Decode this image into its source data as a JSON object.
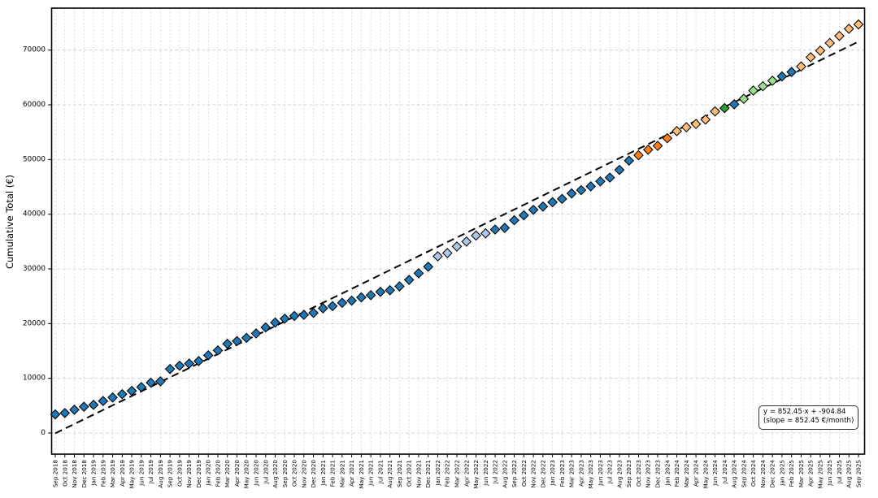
{
  "chart_data": {
    "type": "scatter",
    "title": "",
    "xlabel": "",
    "ylabel": "Cumulative Total (€)",
    "marker": "diamond",
    "grid": "dashed-both-axes",
    "legend": "none",
    "ylim": [
      -3860,
      77680
    ],
    "yticks": [
      0,
      10000,
      20000,
      30000,
      40000,
      50000,
      60000,
      70000
    ],
    "x": [
      "Sep 2018",
      "Oct 2018",
      "Nov 2018",
      "Dec 2018",
      "Jan 2019",
      "Feb 2019",
      "Mar 2019",
      "Apr 2019",
      "May 2019",
      "Jun 2019",
      "Jul 2019",
      "Aug 2019",
      "Sep 2019",
      "Oct 2019",
      "Nov 2019",
      "Dec 2019",
      "Jan 2020",
      "Feb 2020",
      "Mar 2020",
      "Apr 2020",
      "May 2020",
      "Jun 2020",
      "Jul 2020",
      "Aug 2020",
      "Sep 2020",
      "Oct 2020",
      "Nov 2020",
      "Dec 2020",
      "Jan 2021",
      "Feb 2021",
      "Mar 2021",
      "Apr 2021",
      "May 2021",
      "Jun 2021",
      "Jul 2021",
      "Aug 2021",
      "Sep 2021",
      "Oct 2021",
      "Nov 2021",
      "Dec 2021",
      "Jan 2022",
      "Feb 2022",
      "Mar 2022",
      "Apr 2022",
      "May 2022",
      "Jun 2022",
      "Jul 2022",
      "Aug 2022",
      "Sep 2022",
      "Oct 2022",
      "Nov 2022",
      "Dec 2022",
      "Jan 2023",
      "Feb 2023",
      "Mar 2023",
      "Apr 2023",
      "May 2023",
      "Jun 2023",
      "Jul 2023",
      "Aug 2023",
      "Sep 2023",
      "Oct 2023",
      "Nov 2023",
      "Dec 2023",
      "Jan 2024",
      "Feb 2024",
      "Mar 2024",
      "Apr 2024",
      "May 2024",
      "Jun 2024",
      "Jul 2024",
      "Aug 2024",
      "Sep 2024",
      "Oct 2024",
      "Nov 2024",
      "Dec 2024",
      "Jan 2025",
      "Feb 2025",
      "Mar 2025",
      "Apr 2025",
      "May 2025",
      "Jun 2025",
      "Jul 2025",
      "Aug 2025",
      "Sep 2025"
    ],
    "values": [
      3400,
      3650,
      4250,
      4800,
      5150,
      5850,
      6500,
      7100,
      7700,
      8400,
      9200,
      9450,
      11700,
      12300,
      12700,
      13150,
      14200,
      15100,
      16300,
      16800,
      17400,
      18200,
      19300,
      20200,
      20900,
      21400,
      21600,
      21950,
      22800,
      23200,
      23800,
      24200,
      24800,
      25200,
      25800,
      26100,
      26800,
      28000,
      29200,
      30400,
      32300,
      32900,
      34100,
      35000,
      36100,
      36500,
      37200,
      37500,
      38900,
      39800,
      40800,
      41400,
      42200,
      42800,
      43800,
      44400,
      45100,
      46000,
      46700,
      48100,
      49800,
      50800,
      51800,
      52500,
      53900,
      55200,
      55900,
      56500,
      57300,
      58800,
      59400,
      60100,
      61100,
      62600,
      63400,
      64400,
      65200,
      66000,
      67000,
      68700,
      69900,
      71300,
      72600,
      73900,
      74700
    ],
    "point_colors": [
      "blue",
      "blue",
      "blue",
      "blue",
      "blue",
      "blue",
      "blue",
      "blue",
      "blue",
      "blue",
      "blue",
      "blue",
      "blue",
      "blue",
      "blue",
      "blue",
      "blue",
      "blue",
      "blue",
      "blue",
      "blue",
      "blue",
      "blue",
      "blue",
      "blue",
      "blue",
      "blue",
      "blue",
      "blue",
      "blue",
      "blue",
      "blue",
      "blue",
      "blue",
      "blue",
      "blue",
      "blue",
      "blue",
      "blue",
      "blue",
      "light_blue",
      "light_blue",
      "light_blue",
      "light_blue",
      "light_blue",
      "light_blue",
      "blue",
      "blue",
      "blue",
      "blue",
      "blue",
      "blue",
      "blue",
      "blue",
      "blue",
      "blue",
      "blue",
      "blue",
      "blue",
      "blue",
      "blue",
      "orange",
      "orange",
      "orange",
      "orange",
      "light_orange",
      "light_orange",
      "light_orange",
      "light_orange",
      "light_orange",
      "green",
      "blue",
      "light_green",
      "light_green",
      "light_green",
      "light_green",
      "blue",
      "blue",
      "light_orange",
      "light_orange",
      "light_orange",
      "light_orange",
      "light_orange",
      "light_orange",
      "light_orange"
    ],
    "palette": {
      "blue": "#1f77b4",
      "light_blue": "#aec7e8",
      "orange": "#ff7f0e",
      "light_orange": "#ffbb78",
      "green": "#2ca02c",
      "light_green": "#98df8a",
      "marker_edge": "#000000",
      "grid": "#cccccc",
      "trend": "#000000"
    },
    "trendline": {
      "slope": 852.45,
      "intercept": -904.84,
      "x_index_start": 1,
      "style": "black-dashed"
    },
    "annotation": {
      "line1": "y = 852.45·x + -904.84",
      "line2": "(slope = 852.45 €/month)"
    }
  }
}
